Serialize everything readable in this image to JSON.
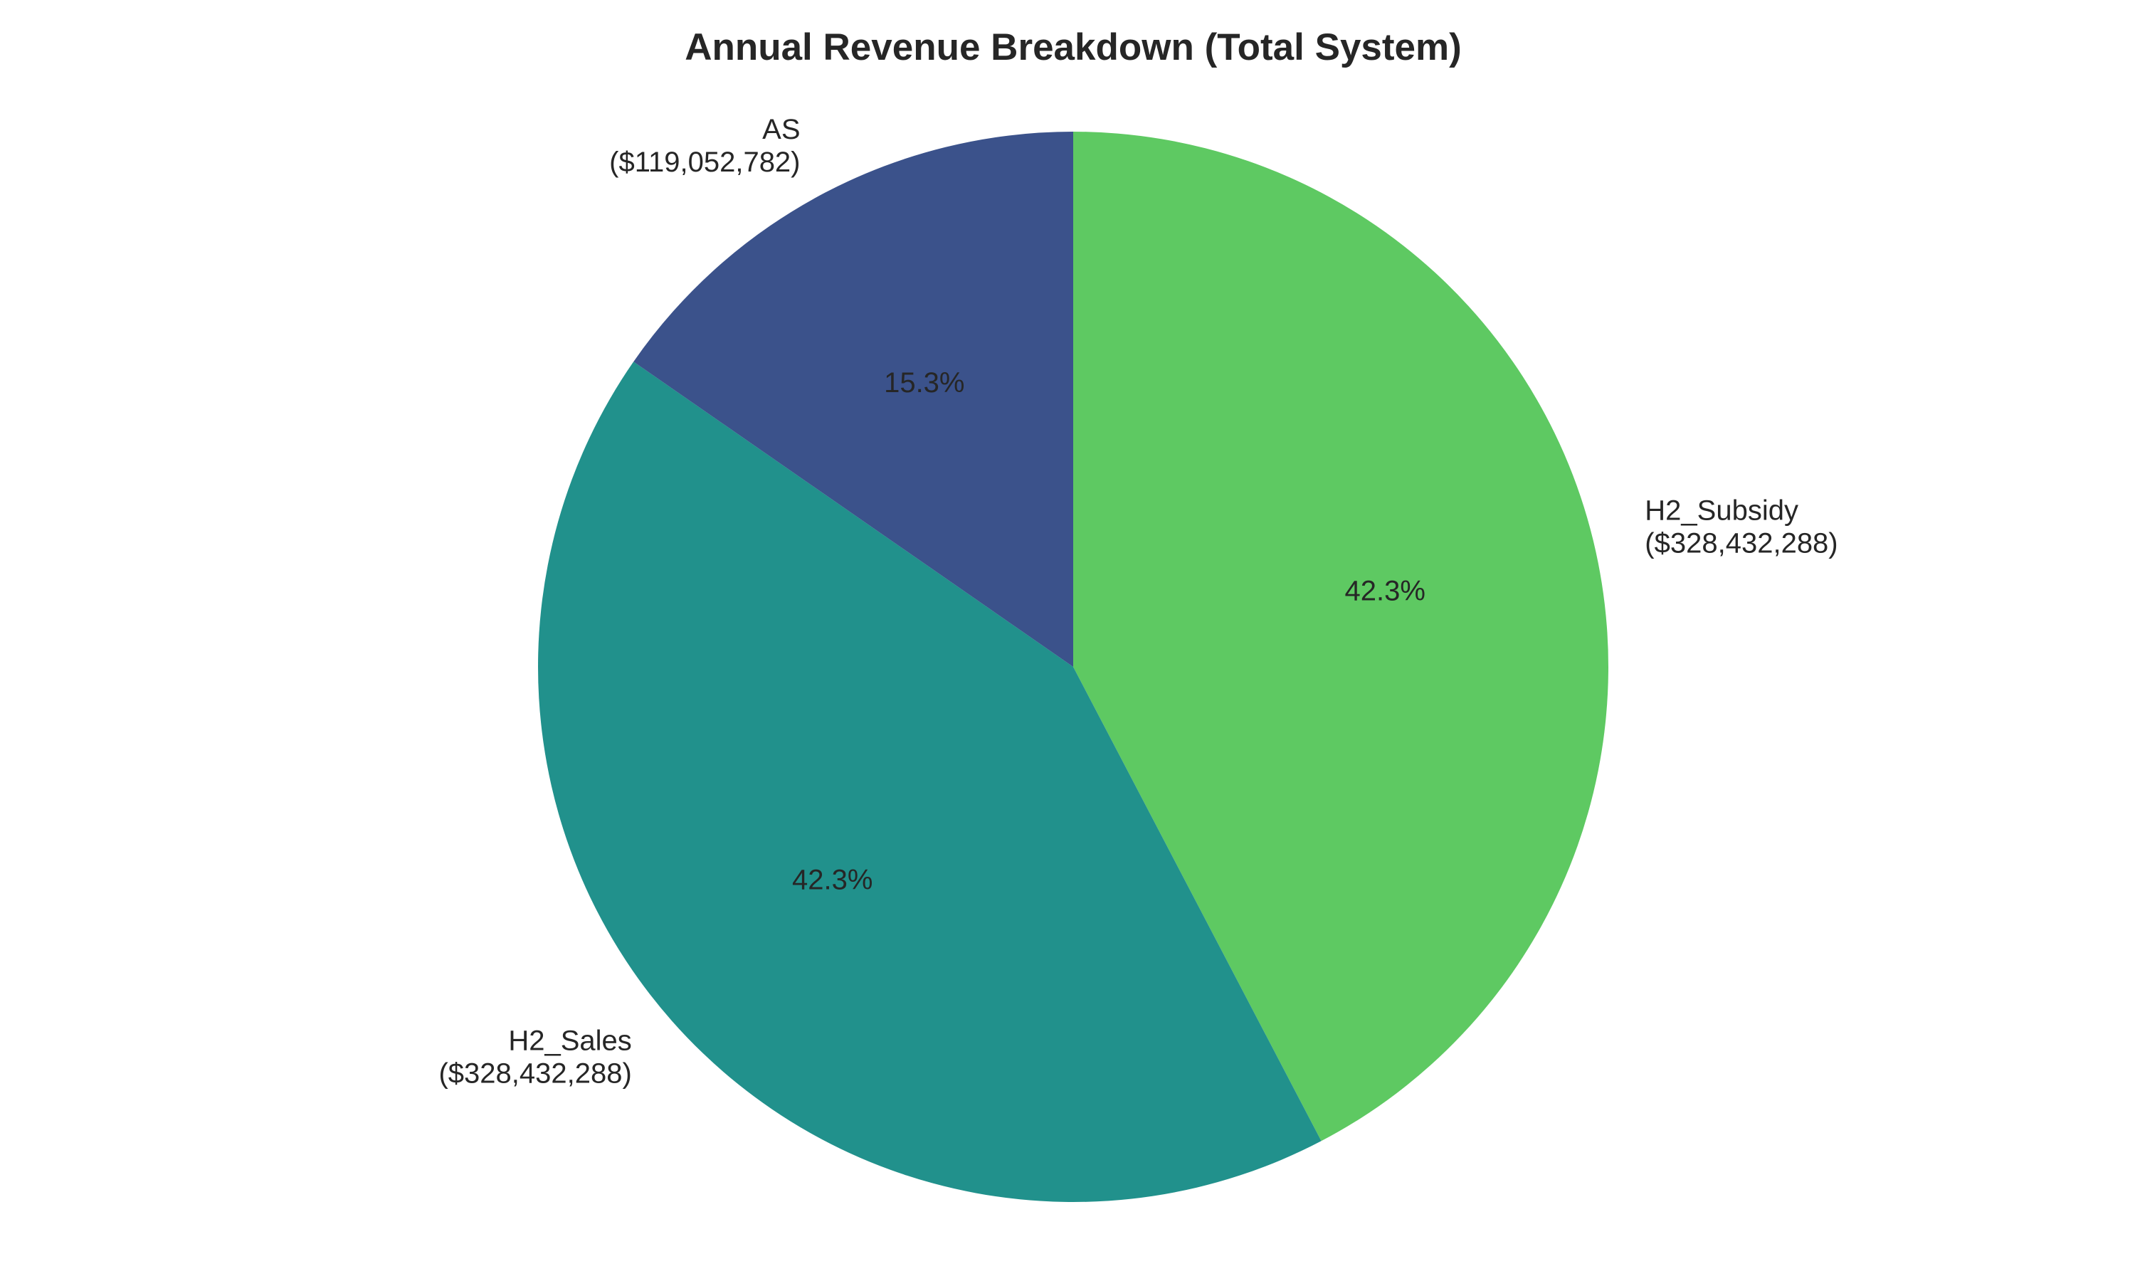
{
  "chart_data": {
    "type": "pie",
    "title": "Annual Revenue Breakdown (Total System)",
    "start_angle_deg": 90,
    "direction": "clockwise",
    "slices": [
      {
        "label": "H2_Subsidy",
        "value": 328432288,
        "value_label": "($328,432,288)",
        "percent_label": "42.3%",
        "color": "#5ec962"
      },
      {
        "label": "H2_Sales",
        "value": 328432288,
        "value_label": "($328,432,288)",
        "percent_label": "42.3%",
        "color": "#21918c"
      },
      {
        "label": "AS",
        "value": 119052782,
        "value_label": "($119,052,782)",
        "percent_label": "15.3%",
        "color": "#3b528b"
      }
    ]
  }
}
